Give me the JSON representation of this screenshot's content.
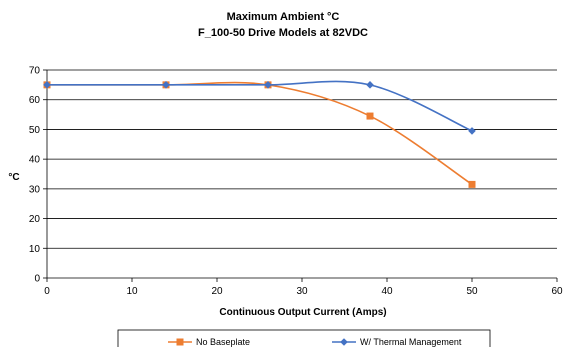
{
  "chart_data": {
    "type": "line",
    "title": [
      "Maximum Ambient °C",
      "F_100-50 Drive Models at 82VDC"
    ],
    "xlabel": "Continuous  Output Current (Amps)",
    "ylabel": "°C",
    "xlim": [
      0,
      60
    ],
    "ylim": [
      0,
      70
    ],
    "xticks": [
      0,
      10,
      20,
      30,
      40,
      50,
      60
    ],
    "yticks": [
      0,
      10,
      20,
      30,
      40,
      50,
      60,
      70
    ],
    "grid": "horizontal",
    "legend_position": "bottom",
    "series": [
      {
        "name": "No Baseplate",
        "color": "#ED7D31",
        "marker": "square",
        "x": [
          0,
          14,
          26,
          38,
          50
        ],
        "y": [
          65,
          65,
          65,
          54.5,
          31.5
        ]
      },
      {
        "name": "W/ Thermal Management",
        "color": "#4472C4",
        "marker": "diamond",
        "x": [
          0,
          14,
          26,
          38,
          50
        ],
        "y": [
          65,
          65,
          65,
          65,
          49.5
        ]
      }
    ]
  }
}
